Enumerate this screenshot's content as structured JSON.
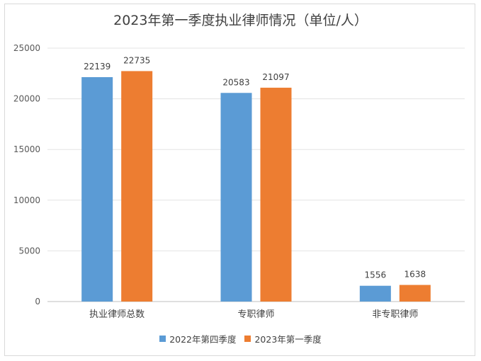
{
  "chart_data": {
    "type": "bar",
    "title": "2023年第一季度执业律师情况（单位/人）",
    "categories": [
      "执业律师总数",
      "专职律师",
      "非专职律师"
    ],
    "series": [
      {
        "name": "2022年第四季度",
        "color": "#5b9bd5",
        "values": [
          22139,
          20583,
          1556
        ]
      },
      {
        "name": "2023年第一季度",
        "color": "#ed7d31",
        "values": [
          22735,
          21097,
          1638
        ]
      }
    ],
    "yticks": [
      0,
      5000,
      10000,
      15000,
      20000,
      25000
    ],
    "ylim": [
      0,
      25000
    ],
    "grid": true,
    "legend": "bottom"
  }
}
